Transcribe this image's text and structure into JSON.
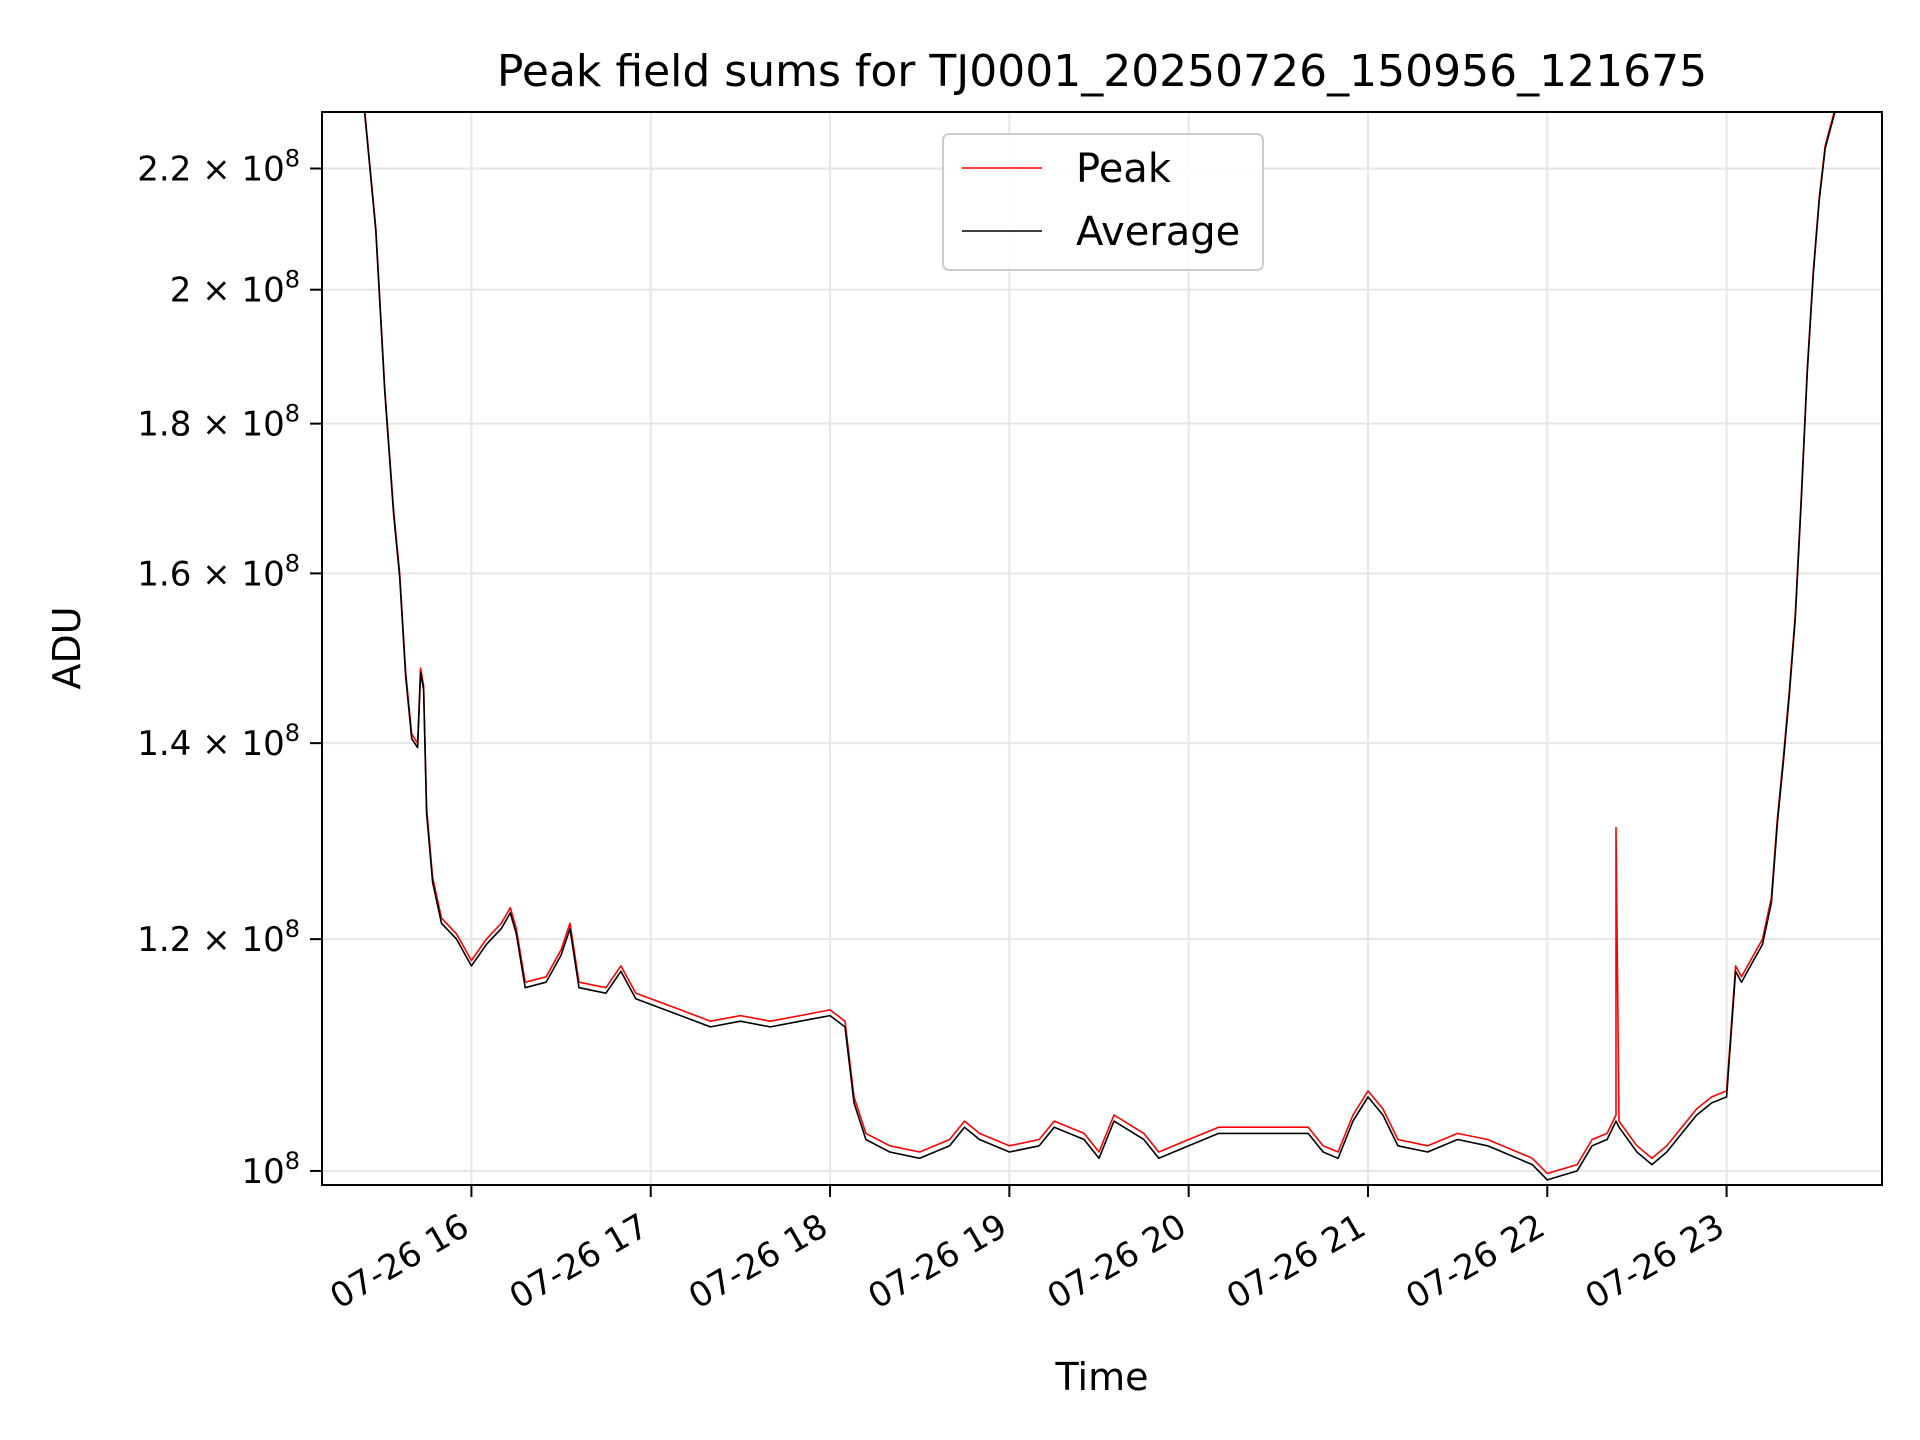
{
  "chart_data": {
    "type": "line",
    "title": "Peak field sums for TJ0001_20250726_150956_121675",
    "xlabel": "Time",
    "ylabel": "ADU",
    "yscale": "log",
    "grid": true,
    "legend_position": "upper center",
    "xlim": [
      "07-26 15:10",
      "07-26 23:52"
    ],
    "ylim": [
      98900000,
      230000000
    ],
    "x_ticks": [
      {
        "value": "07-26 16:00",
        "label": "07-26 16"
      },
      {
        "value": "07-26 17:00",
        "label": "07-26 17"
      },
      {
        "value": "07-26 18:00",
        "label": "07-26 18"
      },
      {
        "value": "07-26 19:00",
        "label": "07-26 19"
      },
      {
        "value": "07-26 20:00",
        "label": "07-26 20"
      },
      {
        "value": "07-26 21:00",
        "label": "07-26 21"
      },
      {
        "value": "07-26 22:00",
        "label": "07-26 22"
      },
      {
        "value": "07-26 23:00",
        "label": "07-26 23"
      }
    ],
    "y_ticks": [
      {
        "value": 100000000,
        "mantissa": "",
        "exponent": "8"
      },
      {
        "value": 120000000,
        "mantissa": "1.2",
        "exponent": "8"
      },
      {
        "value": 140000000,
        "mantissa": "1.4",
        "exponent": "8"
      },
      {
        "value": 160000000,
        "mantissa": "1.6",
        "exponent": "8"
      },
      {
        "value": 180000000,
        "mantissa": "1.8",
        "exponent": "8"
      },
      {
        "value": 200000000,
        "mantissa": "2",
        "exponent": "8"
      },
      {
        "value": 220000000,
        "mantissa": "2.2",
        "exponent": "8"
      }
    ],
    "series": [
      {
        "name": "Peak",
        "color": "#ff0000",
        "points": [
          [
            "07-26 15:24",
            232000000
          ],
          [
            "07-26 15:28",
            210000000
          ],
          [
            "07-26 15:31",
            185000000
          ],
          [
            "07-26 15:34",
            168000000
          ],
          [
            "07-26 15:36",
            160000000
          ],
          [
            "07-26 15:38",
            148000000
          ],
          [
            "07-26 15:40",
            141000000
          ],
          [
            "07-26 15:42",
            140000000
          ],
          [
            "07-26 15:43",
            148500000
          ],
          [
            "07-26 15:44",
            146500000
          ],
          [
            "07-26 15:45",
            133000000
          ],
          [
            "07-26 15:47",
            126000000
          ],
          [
            "07-26 15:50",
            122000000
          ],
          [
            "07-26 15:55",
            120500000
          ],
          [
            "07-26 16:00",
            118000000
          ],
          [
            "07-26 16:05",
            120000000
          ],
          [
            "07-26 16:10",
            121500000
          ],
          [
            "07-26 16:13",
            123000000
          ],
          [
            "07-26 16:15",
            121000000
          ],
          [
            "07-26 16:18",
            116000000
          ],
          [
            "07-26 16:25",
            116500000
          ],
          [
            "07-26 16:30",
            119000000
          ],
          [
            "07-26 16:33",
            121500000
          ],
          [
            "07-26 16:36",
            116000000
          ],
          [
            "07-26 16:45",
            115500000
          ],
          [
            "07-26 16:50",
            117500000
          ],
          [
            "07-26 16:55",
            115000000
          ],
          [
            "07-26 17:00",
            114500000
          ],
          [
            "07-26 17:10",
            113500000
          ],
          [
            "07-26 17:20",
            112500000
          ],
          [
            "07-26 17:30",
            113000000
          ],
          [
            "07-26 17:40",
            112500000
          ],
          [
            "07-26 17:50",
            113000000
          ],
          [
            "07-26 18:00",
            113500000
          ],
          [
            "07-26 18:05",
            112500000
          ],
          [
            "07-26 18:08",
            106000000
          ],
          [
            "07-26 18:12",
            103000000
          ],
          [
            "07-26 18:20",
            102000000
          ],
          [
            "07-26 18:30",
            101500000
          ],
          [
            "07-26 18:40",
            102500000
          ],
          [
            "07-26 18:45",
            104000000
          ],
          [
            "07-26 18:50",
            103000000
          ],
          [
            "07-26 19:00",
            102000000
          ],
          [
            "07-26 19:10",
            102500000
          ],
          [
            "07-26 19:15",
            104000000
          ],
          [
            "07-26 19:25",
            103000000
          ],
          [
            "07-26 19:30",
            101500000
          ],
          [
            "07-26 19:35",
            104500000
          ],
          [
            "07-26 19:45",
            103000000
          ],
          [
            "07-26 19:50",
            101500000
          ],
          [
            "07-26 20:00",
            102500000
          ],
          [
            "07-26 20:10",
            103500000
          ],
          [
            "07-26 20:20",
            103500000
          ],
          [
            "07-26 20:30",
            103500000
          ],
          [
            "07-26 20:40",
            103500000
          ],
          [
            "07-26 20:45",
            102000000
          ],
          [
            "07-26 20:50",
            101500000
          ],
          [
            "07-26 20:55",
            104500000
          ],
          [
            "07-26 21:00",
            106500000
          ],
          [
            "07-26 21:05",
            105000000
          ],
          [
            "07-26 21:10",
            102500000
          ],
          [
            "07-26 21:20",
            102000000
          ],
          [
            "07-26 21:30",
            103000000
          ],
          [
            "07-26 21:40",
            102500000
          ],
          [
            "07-26 21:45",
            102000000
          ],
          [
            "07-26 21:50",
            101500000
          ],
          [
            "07-26 21:55",
            101000000
          ],
          [
            "07-26 22:00",
            99800000
          ],
          [
            "07-26 22:10",
            100500000
          ],
          [
            "07-26 22:15",
            102500000
          ],
          [
            "07-26 22:20",
            103000000
          ],
          [
            "07-26 22:23",
            104500000
          ],
          [
            "07-26 22:23",
            131000000
          ],
          [
            "07-26 22:24",
            104000000
          ],
          [
            "07-26 22:30",
            102000000
          ],
          [
            "07-26 22:35",
            101000000
          ],
          [
            "07-26 22:40",
            102000000
          ],
          [
            "07-26 22:45",
            103500000
          ],
          [
            "07-26 22:50",
            105000000
          ],
          [
            "07-26 22:55",
            106000000
          ],
          [
            "07-26 23:00",
            106500000
          ],
          [
            "07-26 23:03",
            117500000
          ],
          [
            "07-26 23:05",
            116500000
          ],
          [
            "07-26 23:08",
            118000000
          ],
          [
            "07-26 23:12",
            120000000
          ],
          [
            "07-26 23:15",
            124000000
          ],
          [
            "07-26 23:17",
            132000000
          ],
          [
            "07-26 23:19",
            138500000
          ],
          [
            "07-26 23:21",
            146000000
          ],
          [
            "07-26 23:23",
            155000000
          ],
          [
            "07-26 23:25",
            170000000
          ],
          [
            "07-26 23:27",
            188000000
          ],
          [
            "07-26 23:29",
            203000000
          ],
          [
            "07-26 23:31",
            215000000
          ],
          [
            "07-26 23:33",
            224000000
          ],
          [
            "07-26 23:35",
            228000000
          ],
          [
            "07-26 23:37",
            232000000
          ]
        ]
      },
      {
        "name": "Average",
        "color": "#000000",
        "points": [
          [
            "07-26 15:24",
            231500000
          ],
          [
            "07-26 15:28",
            209500000
          ],
          [
            "07-26 15:31",
            184500000
          ],
          [
            "07-26 15:34",
            167500000
          ],
          [
            "07-26 15:36",
            159500000
          ],
          [
            "07-26 15:38",
            147500000
          ],
          [
            "07-26 15:40",
            140500000
          ],
          [
            "07-26 15:42",
            139500000
          ],
          [
            "07-26 15:43",
            148000000
          ],
          [
            "07-26 15:44",
            146000000
          ],
          [
            "07-26 15:45",
            132500000
          ],
          [
            "07-26 15:47",
            125500000
          ],
          [
            "07-26 15:50",
            121500000
          ],
          [
            "07-26 15:55",
            120000000
          ],
          [
            "07-26 16:00",
            117500000
          ],
          [
            "07-26 16:05",
            119500000
          ],
          [
            "07-26 16:10",
            121000000
          ],
          [
            "07-26 16:13",
            122500000
          ],
          [
            "07-26 16:15",
            120500000
          ],
          [
            "07-26 16:18",
            115500000
          ],
          [
            "07-26 16:25",
            116000000
          ],
          [
            "07-26 16:30",
            118500000
          ],
          [
            "07-26 16:33",
            121000000
          ],
          [
            "07-26 16:36",
            115500000
          ],
          [
            "07-26 16:45",
            115000000
          ],
          [
            "07-26 16:50",
            117000000
          ],
          [
            "07-26 16:55",
            114500000
          ],
          [
            "07-26 17:00",
            114000000
          ],
          [
            "07-26 17:10",
            113000000
          ],
          [
            "07-26 17:20",
            112000000
          ],
          [
            "07-26 17:30",
            112500000
          ],
          [
            "07-26 17:40",
            112000000
          ],
          [
            "07-26 17:50",
            112500000
          ],
          [
            "07-26 18:00",
            113000000
          ],
          [
            "07-26 18:05",
            112000000
          ],
          [
            "07-26 18:08",
            105500000
          ],
          [
            "07-26 18:12",
            102500000
          ],
          [
            "07-26 18:20",
            101500000
          ],
          [
            "07-26 18:30",
            101000000
          ],
          [
            "07-26 18:40",
            102000000
          ],
          [
            "07-26 18:45",
            103500000
          ],
          [
            "07-26 18:50",
            102500000
          ],
          [
            "07-26 19:00",
            101500000
          ],
          [
            "07-26 19:10",
            102000000
          ],
          [
            "07-26 19:15",
            103500000
          ],
          [
            "07-26 19:25",
            102500000
          ],
          [
            "07-26 19:30",
            101000000
          ],
          [
            "07-26 19:35",
            104000000
          ],
          [
            "07-26 19:45",
            102500000
          ],
          [
            "07-26 19:50",
            101000000
          ],
          [
            "07-26 20:00",
            102000000
          ],
          [
            "07-26 20:10",
            103000000
          ],
          [
            "07-26 20:20",
            103000000
          ],
          [
            "07-26 20:30",
            103000000
          ],
          [
            "07-26 20:40",
            103000000
          ],
          [
            "07-26 20:45",
            101500000
          ],
          [
            "07-26 20:50",
            101000000
          ],
          [
            "07-26 20:55",
            104000000
          ],
          [
            "07-26 21:00",
            106000000
          ],
          [
            "07-26 21:05",
            104500000
          ],
          [
            "07-26 21:10",
            102000000
          ],
          [
            "07-26 21:20",
            101500000
          ],
          [
            "07-26 21:30",
            102500000
          ],
          [
            "07-26 21:40",
            102000000
          ],
          [
            "07-26 21:45",
            101500000
          ],
          [
            "07-26 21:50",
            101000000
          ],
          [
            "07-26 21:55",
            100500000
          ],
          [
            "07-26 22:00",
            99300000
          ],
          [
            "07-26 22:10",
            100000000
          ],
          [
            "07-26 22:15",
            102000000
          ],
          [
            "07-26 22:20",
            102500000
          ],
          [
            "07-26 22:23",
            104000000
          ],
          [
            "07-26 22:24",
            103500000
          ],
          [
            "07-26 22:30",
            101500000
          ],
          [
            "07-26 22:35",
            100500000
          ],
          [
            "07-26 22:40",
            101500000
          ],
          [
            "07-26 22:45",
            103000000
          ],
          [
            "07-26 22:50",
            104500000
          ],
          [
            "07-26 22:55",
            105500000
          ],
          [
            "07-26 23:00",
            106000000
          ],
          [
            "07-26 23:03",
            117000000
          ],
          [
            "07-26 23:05",
            116000000
          ],
          [
            "07-26 23:08",
            117500000
          ],
          [
            "07-26 23:12",
            119500000
          ],
          [
            "07-26 23:15",
            123500000
          ],
          [
            "07-26 23:17",
            131500000
          ],
          [
            "07-26 23:19",
            138000000
          ],
          [
            "07-26 23:21",
            145500000
          ],
          [
            "07-26 23:23",
            154500000
          ],
          [
            "07-26 23:25",
            169500000
          ],
          [
            "07-26 23:27",
            187500000
          ],
          [
            "07-26 23:29",
            202500000
          ],
          [
            "07-26 23:31",
            214500000
          ],
          [
            "07-26 23:33",
            223500000
          ],
          [
            "07-26 23:35",
            227500000
          ],
          [
            "07-26 23:37",
            231500000
          ]
        ]
      }
    ]
  }
}
